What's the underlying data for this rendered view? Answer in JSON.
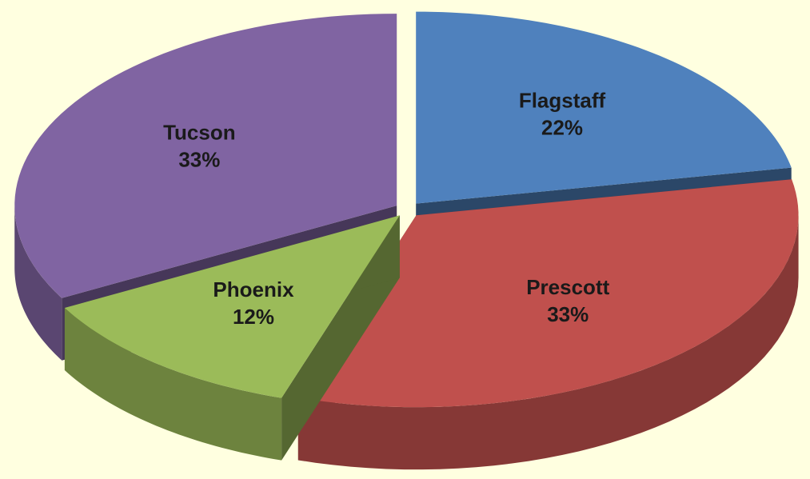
{
  "chart_data": {
    "type": "pie",
    "categories": [
      "Flagstaff",
      "Prescott",
      "Phoenix",
      "Tucson"
    ],
    "values": [
      22,
      33,
      12,
      33
    ],
    "value_labels": [
      "22%",
      "33%",
      "12%",
      "33%"
    ],
    "colors": [
      "#4f81bd",
      "#c0504d",
      "#9bbb59",
      "#8064a2"
    ],
    "three_d": true,
    "exploded": true
  }
}
